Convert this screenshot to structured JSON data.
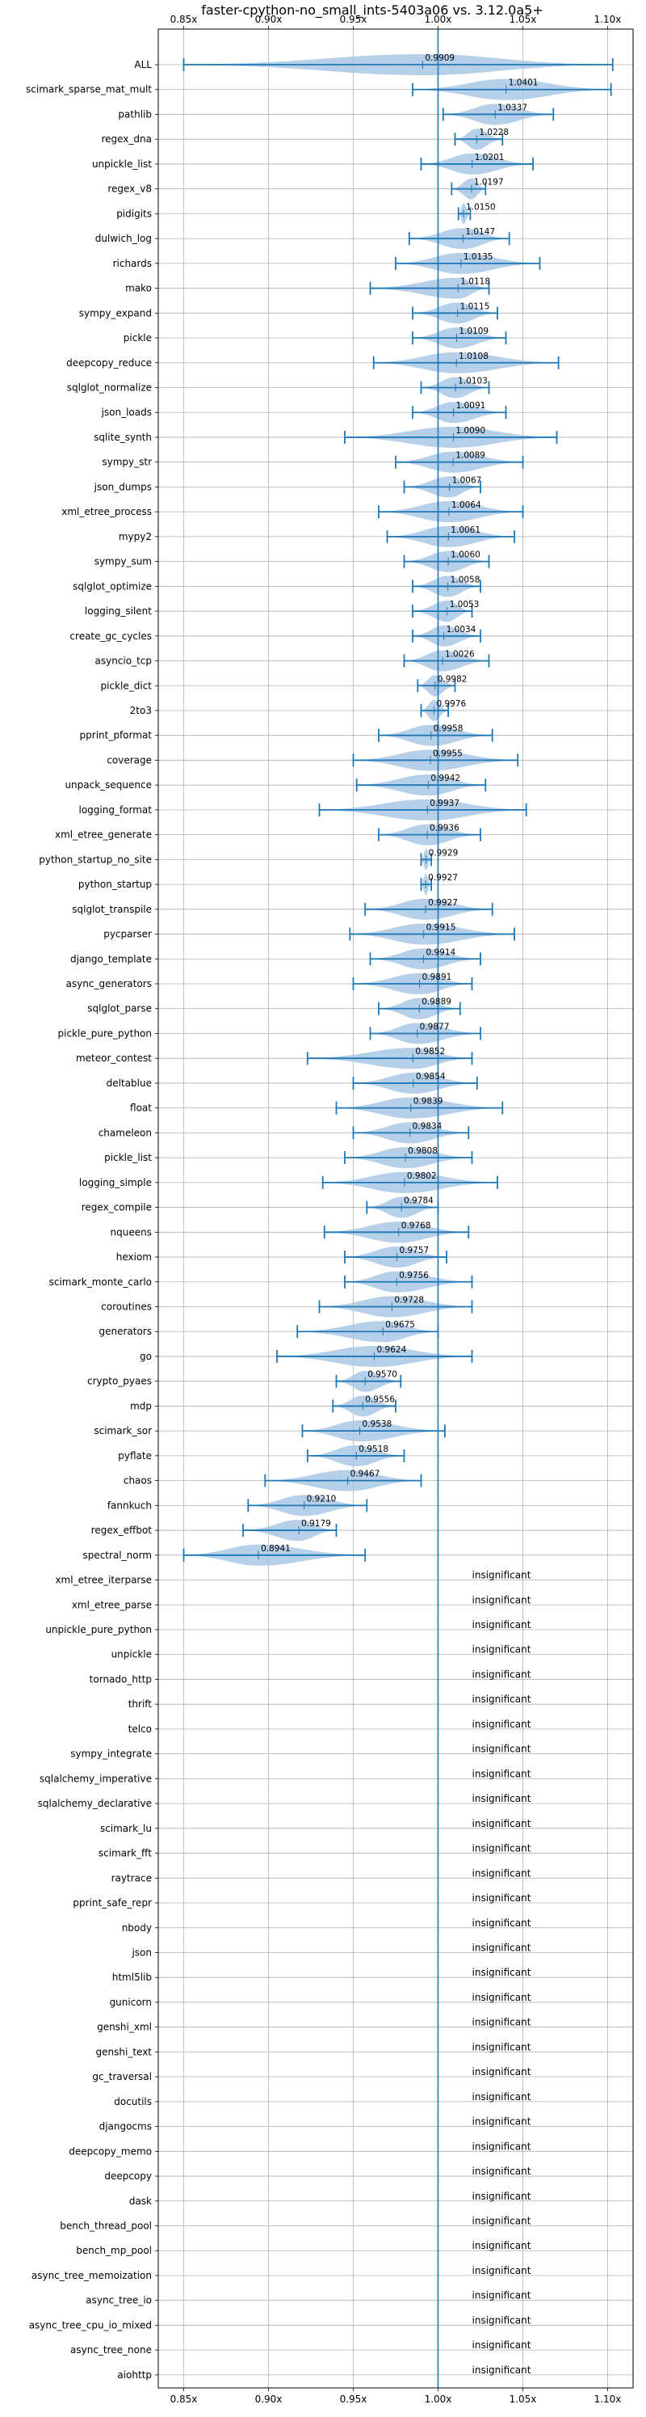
{
  "chart_data": {
    "type": "violin",
    "title": "faster-cpython-no_small_ints-5403a06 vs. 3.12.0a5+",
    "xlabel": "",
    "ylabel": "",
    "xlim": [
      0.835,
      1.115
    ],
    "xticks": [
      0.85,
      0.9,
      0.95,
      1.0,
      1.05,
      1.1
    ],
    "xtick_labels": [
      "0.85x",
      "0.90x",
      "0.95x",
      "1.00x",
      "1.05x",
      "1.10x"
    ],
    "reference_line": 1.0,
    "grid": true,
    "colors": {
      "violin": "#a9c8e6",
      "line": "#1f77b4",
      "grid": "#b0b0b0"
    },
    "insignificant_text": "insignificant",
    "benchmarks": [
      {
        "name": "ALL",
        "mean": 0.9909,
        "min": 0.85,
        "max": 1.103,
        "label": "0.9909",
        "significant": true
      },
      {
        "name": "scimark_sparse_mat_mult",
        "mean": 1.0401,
        "min": 0.985,
        "max": 1.102,
        "label": "1.0401",
        "significant": true
      },
      {
        "name": "pathlib",
        "mean": 1.0337,
        "min": 1.003,
        "max": 1.068,
        "label": "1.0337",
        "significant": true
      },
      {
        "name": "regex_dna",
        "mean": 1.0228,
        "min": 1.01,
        "max": 1.038,
        "label": "1.0228",
        "significant": true
      },
      {
        "name": "unpickle_list",
        "mean": 1.0201,
        "min": 0.99,
        "max": 1.056,
        "label": "1.0201",
        "significant": true
      },
      {
        "name": "regex_v8",
        "mean": 1.0197,
        "min": 1.008,
        "max": 1.028,
        "label": "1.0197",
        "significant": true
      },
      {
        "name": "pidigits",
        "mean": 1.015,
        "min": 1.012,
        "max": 1.019,
        "label": "1.0150",
        "significant": true
      },
      {
        "name": "dulwich_log",
        "mean": 1.0147,
        "min": 0.983,
        "max": 1.042,
        "label": "1.0147",
        "significant": true
      },
      {
        "name": "richards",
        "mean": 1.0135,
        "min": 0.975,
        "max": 1.06,
        "label": "1.0135",
        "significant": true
      },
      {
        "name": "mako",
        "mean": 1.0118,
        "min": 0.96,
        "max": 1.03,
        "label": "1.0118",
        "significant": true
      },
      {
        "name": "sympy_expand",
        "mean": 1.0115,
        "min": 0.985,
        "max": 1.035,
        "label": "1.0115",
        "significant": true
      },
      {
        "name": "pickle",
        "mean": 1.0109,
        "min": 0.985,
        "max": 1.04,
        "label": "1.0109",
        "significant": true
      },
      {
        "name": "deepcopy_reduce",
        "mean": 1.0108,
        "min": 0.962,
        "max": 1.071,
        "label": "1.0108",
        "significant": true
      },
      {
        "name": "sqlglot_normalize",
        "mean": 1.0103,
        "min": 0.99,
        "max": 1.03,
        "label": "1.0103",
        "significant": true
      },
      {
        "name": "json_loads",
        "mean": 1.0091,
        "min": 0.985,
        "max": 1.04,
        "label": "1.0091",
        "significant": true
      },
      {
        "name": "sqlite_synth",
        "mean": 1.009,
        "min": 0.945,
        "max": 1.07,
        "label": "1.0090",
        "significant": true
      },
      {
        "name": "sympy_str",
        "mean": 1.0089,
        "min": 0.975,
        "max": 1.05,
        "label": "1.0089",
        "significant": true
      },
      {
        "name": "json_dumps",
        "mean": 1.0067,
        "min": 0.98,
        "max": 1.025,
        "label": "1.0067",
        "significant": true
      },
      {
        "name": "xml_etree_process",
        "mean": 1.0064,
        "min": 0.965,
        "max": 1.05,
        "label": "1.0064",
        "significant": true
      },
      {
        "name": "mypy2",
        "mean": 1.0061,
        "min": 0.97,
        "max": 1.045,
        "label": "1.0061",
        "significant": true
      },
      {
        "name": "sympy_sum",
        "mean": 1.006,
        "min": 0.98,
        "max": 1.03,
        "label": "1.0060",
        "significant": true
      },
      {
        "name": "sqlglot_optimize",
        "mean": 1.0058,
        "min": 0.985,
        "max": 1.025,
        "label": "1.0058",
        "significant": true
      },
      {
        "name": "logging_silent",
        "mean": 1.0053,
        "min": 0.985,
        "max": 1.02,
        "label": "1.0053",
        "significant": true
      },
      {
        "name": "create_gc_cycles",
        "mean": 1.0034,
        "min": 0.985,
        "max": 1.025,
        "label": "1.0034",
        "significant": true
      },
      {
        "name": "asyncio_tcp",
        "mean": 1.0026,
        "min": 0.98,
        "max": 1.03,
        "label": "1.0026",
        "significant": true
      },
      {
        "name": "pickle_dict",
        "mean": 0.9982,
        "min": 0.988,
        "max": 1.01,
        "label": "0.9982",
        "significant": true
      },
      {
        "name": "2to3",
        "mean": 0.9976,
        "min": 0.99,
        "max": 1.006,
        "label": "0.9976",
        "significant": true
      },
      {
        "name": "pprint_pformat",
        "mean": 0.9958,
        "min": 0.965,
        "max": 1.032,
        "label": "0.9958",
        "significant": true
      },
      {
        "name": "coverage",
        "mean": 0.9955,
        "min": 0.95,
        "max": 1.047,
        "label": "0.9955",
        "significant": true
      },
      {
        "name": "unpack_sequence",
        "mean": 0.9942,
        "min": 0.952,
        "max": 1.028,
        "label": "0.9942",
        "significant": true
      },
      {
        "name": "logging_format",
        "mean": 0.9937,
        "min": 0.93,
        "max": 1.052,
        "label": "0.9937",
        "significant": true
      },
      {
        "name": "xml_etree_generate",
        "mean": 0.9936,
        "min": 0.965,
        "max": 1.025,
        "label": "0.9936",
        "significant": true
      },
      {
        "name": "python_startup_no_site",
        "mean": 0.9929,
        "min": 0.99,
        "max": 0.996,
        "label": "0.9929",
        "significant": true
      },
      {
        "name": "python_startup",
        "mean": 0.9927,
        "min": 0.99,
        "max": 0.996,
        "label": "0.9927",
        "significant": true
      },
      {
        "name": "sqlglot_transpile",
        "mean": 0.9927,
        "min": 0.957,
        "max": 1.032,
        "label": "0.9927",
        "significant": true
      },
      {
        "name": "pycparser",
        "mean": 0.9915,
        "min": 0.948,
        "max": 1.045,
        "label": "0.9915",
        "significant": true
      },
      {
        "name": "django_template",
        "mean": 0.9914,
        "min": 0.96,
        "max": 1.025,
        "label": "0.9914",
        "significant": true
      },
      {
        "name": "async_generators",
        "mean": 0.9891,
        "min": 0.95,
        "max": 1.02,
        "label": "0.9891",
        "significant": true
      },
      {
        "name": "sqlglot_parse",
        "mean": 0.9889,
        "min": 0.965,
        "max": 1.013,
        "label": "0.9889",
        "significant": true
      },
      {
        "name": "pickle_pure_python",
        "mean": 0.9877,
        "min": 0.96,
        "max": 1.025,
        "label": "0.9877",
        "significant": true
      },
      {
        "name": "meteor_contest",
        "mean": 0.9852,
        "min": 0.923,
        "max": 1.02,
        "label": "0.9852",
        "significant": true
      },
      {
        "name": "deltablue",
        "mean": 0.9854,
        "min": 0.95,
        "max": 1.023,
        "label": "0.9854",
        "significant": true
      },
      {
        "name": "float",
        "mean": 0.9839,
        "min": 0.94,
        "max": 1.038,
        "label": "0.9839",
        "significant": true
      },
      {
        "name": "chameleon",
        "mean": 0.9834,
        "min": 0.95,
        "max": 1.018,
        "label": "0.9834",
        "significant": true
      },
      {
        "name": "pickle_list",
        "mean": 0.9808,
        "min": 0.945,
        "max": 1.02,
        "label": "0.9808",
        "significant": true
      },
      {
        "name": "logging_simple",
        "mean": 0.9802,
        "min": 0.932,
        "max": 1.035,
        "label": "0.9802",
        "significant": true
      },
      {
        "name": "regex_compile",
        "mean": 0.9784,
        "min": 0.958,
        "max": 1.0,
        "label": "0.9784",
        "significant": true
      },
      {
        "name": "nqueens",
        "mean": 0.9768,
        "min": 0.933,
        "max": 1.018,
        "label": "0.9768",
        "significant": true
      },
      {
        "name": "hexiom",
        "mean": 0.9757,
        "min": 0.945,
        "max": 1.005,
        "label": "0.9757",
        "significant": true
      },
      {
        "name": "scimark_monte_carlo",
        "mean": 0.9756,
        "min": 0.945,
        "max": 1.02,
        "label": "0.9756",
        "significant": true
      },
      {
        "name": "coroutines",
        "mean": 0.9728,
        "min": 0.93,
        "max": 1.02,
        "label": "0.9728",
        "significant": true
      },
      {
        "name": "generators",
        "mean": 0.9675,
        "min": 0.917,
        "max": 1.0,
        "label": "0.9675",
        "significant": true
      },
      {
        "name": "go",
        "mean": 0.9624,
        "min": 0.905,
        "max": 1.02,
        "label": "0.9624",
        "significant": true
      },
      {
        "name": "crypto_pyaes",
        "mean": 0.957,
        "min": 0.94,
        "max": 0.978,
        "label": "0.9570",
        "significant": true
      },
      {
        "name": "mdp",
        "mean": 0.9556,
        "min": 0.938,
        "max": 0.975,
        "label": "0.9556",
        "significant": true
      },
      {
        "name": "scimark_sor",
        "mean": 0.9538,
        "min": 0.92,
        "max": 1.004,
        "label": "0.9538",
        "significant": true
      },
      {
        "name": "pyflate",
        "mean": 0.9518,
        "min": 0.923,
        "max": 0.98,
        "label": "0.9518",
        "significant": true
      },
      {
        "name": "chaos",
        "mean": 0.9467,
        "min": 0.898,
        "max": 0.99,
        "label": "0.9467",
        "significant": true
      },
      {
        "name": "fannkuch",
        "mean": 0.921,
        "min": 0.888,
        "max": 0.958,
        "label": "0.9210",
        "significant": true
      },
      {
        "name": "regex_effbot",
        "mean": 0.9179,
        "min": 0.885,
        "max": 0.94,
        "label": "0.9179",
        "significant": true
      },
      {
        "name": "spectral_norm",
        "mean": 0.8941,
        "min": 0.85,
        "max": 0.957,
        "label": "0.8941",
        "significant": true
      },
      {
        "name": "xml_etree_iterparse",
        "significant": false
      },
      {
        "name": "xml_etree_parse",
        "significant": false
      },
      {
        "name": "unpickle_pure_python",
        "significant": false
      },
      {
        "name": "unpickle",
        "significant": false
      },
      {
        "name": "tornado_http",
        "significant": false
      },
      {
        "name": "thrift",
        "significant": false
      },
      {
        "name": "telco",
        "significant": false
      },
      {
        "name": "sympy_integrate",
        "significant": false
      },
      {
        "name": "sqlalchemy_imperative",
        "significant": false
      },
      {
        "name": "sqlalchemy_declarative",
        "significant": false
      },
      {
        "name": "scimark_lu",
        "significant": false
      },
      {
        "name": "scimark_fft",
        "significant": false
      },
      {
        "name": "raytrace",
        "significant": false
      },
      {
        "name": "pprint_safe_repr",
        "significant": false
      },
      {
        "name": "nbody",
        "significant": false
      },
      {
        "name": "json",
        "significant": false
      },
      {
        "name": "html5lib",
        "significant": false
      },
      {
        "name": "gunicorn",
        "significant": false
      },
      {
        "name": "genshi_xml",
        "significant": false
      },
      {
        "name": "genshi_text",
        "significant": false
      },
      {
        "name": "gc_traversal",
        "significant": false
      },
      {
        "name": "docutils",
        "significant": false
      },
      {
        "name": "djangocms",
        "significant": false
      },
      {
        "name": "deepcopy_memo",
        "significant": false
      },
      {
        "name": "deepcopy",
        "significant": false
      },
      {
        "name": "dask",
        "significant": false
      },
      {
        "name": "bench_thread_pool",
        "significant": false
      },
      {
        "name": "bench_mp_pool",
        "significant": false
      },
      {
        "name": "async_tree_memoization",
        "significant": false
      },
      {
        "name": "async_tree_io",
        "significant": false
      },
      {
        "name": "async_tree_cpu_io_mixed",
        "significant": false
      },
      {
        "name": "async_tree_none",
        "significant": false
      },
      {
        "name": "aiohttp",
        "significant": false
      }
    ]
  }
}
